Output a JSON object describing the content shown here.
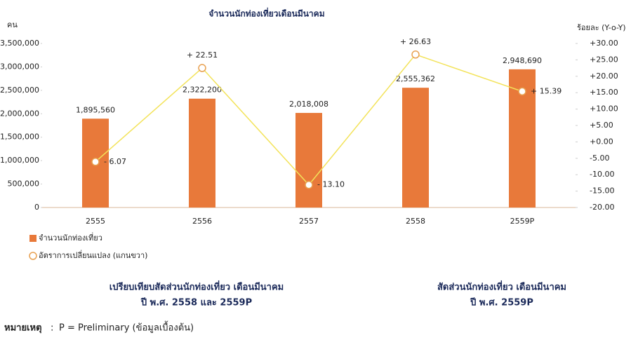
{
  "chart_data": {
    "type": "bar_line",
    "title": "จำนวนนักท่องเที่ยวเดือนมีนาคม",
    "ylabel": "คน",
    "y2label": "ร้อยละ (Y-o-Y)",
    "categories": [
      "2555",
      "2556",
      "2557",
      "2558",
      "2559P"
    ],
    "series": [
      {
        "name": "จำนวนนักท่องเที่ยว",
        "type": "bar",
        "color": "#e8793a",
        "values": [
          1895560,
          2322200,
          2018008,
          2555362,
          2948690
        ],
        "value_labels": [
          "1,895,560",
          "2,322,200",
          "2,018,008",
          "2,555,362",
          "2,948,690"
        ]
      },
      {
        "name": "อัตราการเปลี่ยนแปลง (แกนขวา)",
        "type": "line",
        "axis": "y2",
        "color": "#f3e35a",
        "marker_color": "#e8a050",
        "values": [
          -6.07,
          22.51,
          -13.1,
          26.63,
          15.39
        ],
        "value_labels": [
          "- 6.07",
          "+ 22.51",
          "- 13.10",
          "+ 26.63",
          "+ 15.39"
        ]
      }
    ],
    "ylim": [
      0,
      3500000
    ],
    "yticks": [
      0,
      {
        "value": 500000,
        "label": "500,000"
      },
      {
        "value": 1000000,
        "label": "1,000,000"
      },
      {
        "value": 1500000,
        "label": "1,500,000"
      },
      {
        "value": 2000000,
        "label": "2,000,000"
      },
      {
        "value": 2500000,
        "label": "2,500,000"
      },
      {
        "value": 3000000,
        "label": "3,000,000"
      },
      {
        "value": 3500000,
        "label": "3,500,000"
      }
    ],
    "y2lim": [
      -20,
      30
    ],
    "y2ticks": [
      {
        "value": -20,
        "label": "-20.00"
      },
      {
        "value": -15,
        "label": "-15.00"
      },
      {
        "value": -10,
        "label": "-10.00"
      },
      {
        "value": -5,
        "label": "-5.00"
      },
      {
        "value": 0,
        "label": "+0.00"
      },
      {
        "value": 5,
        "label": "+5.00"
      },
      {
        "value": 10,
        "label": "+10.00"
      },
      {
        "value": 15,
        "label": "+15.00"
      },
      {
        "value": 20,
        "label": "+20.00"
      },
      {
        "value": 25,
        "label": "+25.00"
      },
      {
        "value": 30,
        "label": "+30.00"
      }
    ]
  },
  "captions": [
    [
      "เปรียบเทียบสัดส่วนนักท่องเที่ยว เดือนมีนาคม",
      "ปี พ.ศ. 2558 และ 2559P"
    ],
    [
      "สัดส่วนนักท่องเที่ยว เดือนมีนาคม",
      "ปี พ.ศ. 2559P"
    ]
  ],
  "note": {
    "label": "หมายเหตุ",
    "separator": ":",
    "text": "P = Preliminary (ข้อมูลเบื้องต้น)"
  }
}
